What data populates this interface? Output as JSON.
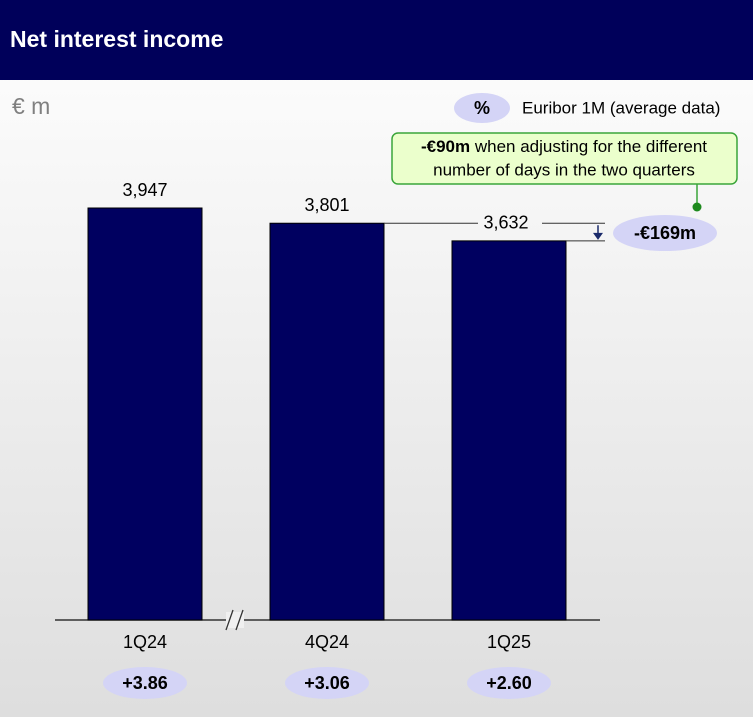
{
  "chart_data": {
    "type": "bar",
    "title": "Net interest income",
    "unit_label": "€ m",
    "categories": [
      "1Q24",
      "4Q24",
      "1Q25"
    ],
    "values": [
      3947,
      3801,
      3632
    ],
    "value_labels": [
      "3,947",
      "3,801",
      "3,632"
    ],
    "color": "#000060",
    "euribor": {
      "symbol": "%",
      "name": "Euribor 1M (average data)",
      "values": [
        3.86,
        3.06,
        2.6
      ],
      "value_labels": [
        "+3.86",
        "+3.06",
        "+2.60"
      ],
      "color": "#d4d4f6"
    },
    "difference": {
      "value": -169,
      "label": "-€169m"
    },
    "callout": {
      "value": -90,
      "label": "-€90m",
      "line1": "when adjusting for the different",
      "line2": "number of days in the two quarters"
    }
  }
}
